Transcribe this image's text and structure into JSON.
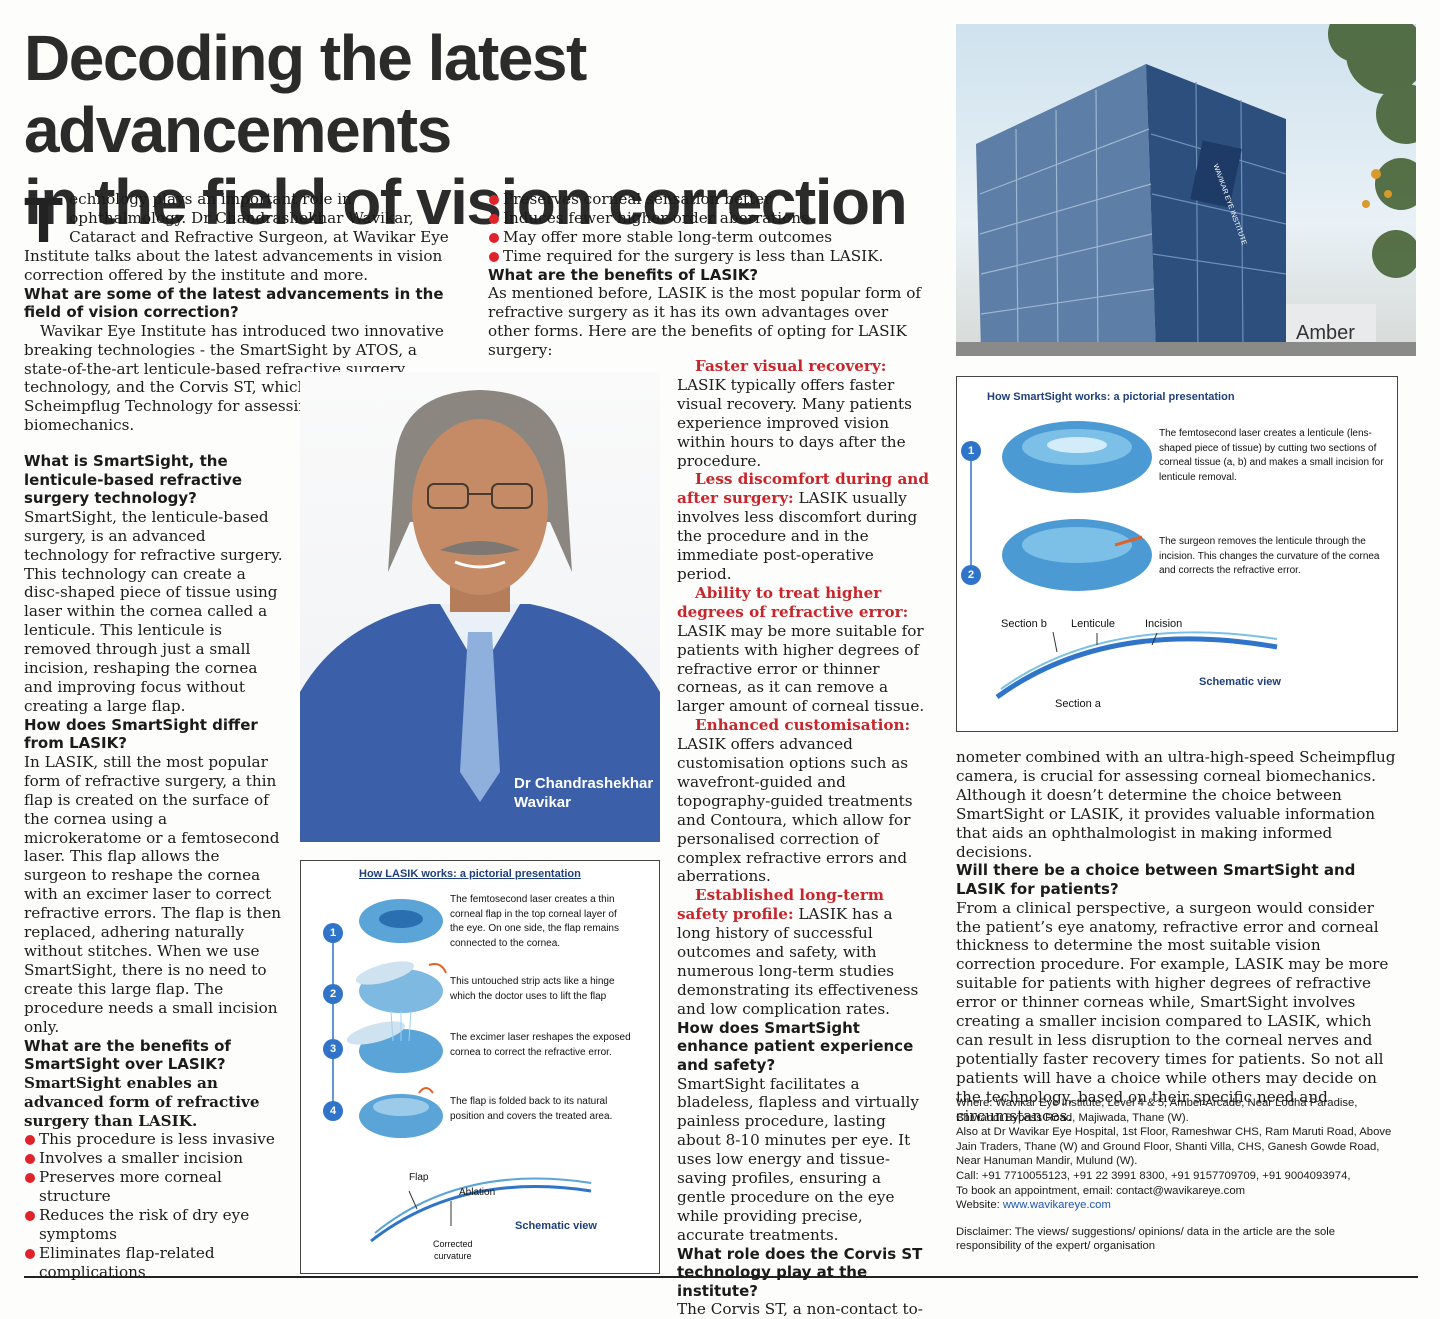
{
  "headline": {
    "line1": "Decoding the latest advancements",
    "line2": "in the field of vision correction"
  },
  "intro": {
    "dropcap": "T",
    "text": "echnology plays an important role in ophthalmology. Dr Chandrashekhar Wavikar, Cataract and Refractive Surgeon, at Wavikar Eye Institute talks about the latest advancements in vision correction offered by the institute and more."
  },
  "col1": {
    "q1": "What are some of the latest advancements in the field of vision correction?",
    "a1": "Wavikar Eye Institute has introduced two innovative breaking technologies - the SmartSight by ATOS, a state-of-the-art lenticule-based refractive surgery technology, and the Corvis ST, which employs Scheimpflug Technology for assessing corneal biomechanics.",
    "q2": "What is SmartSight, the lenticule-based refractive surgery technology?",
    "a2": "SmartSight, the lenticule-based surgery, is an advanced technology for refractive surgery. This technology can create a disc-shaped piece of tissue using laser within the cornea called a lenticule. This lenticule is removed through just a small incision, reshaping the cornea and improving focus without creating a large flap.",
    "q3": "How does SmartSight differ from LASIK?",
    "a3": "In LASIK, still the most popular form of refractive surgery, a thin flap is created on the surface of the cornea using a microkeratome or a femtosecond laser. This flap allows the surgeon to reshape the cornea with an excimer laser to correct refractive errors. The flap is then replaced, adhering naturally without stitches. When we use SmartSight, there is no need to create this large flap. The procedure needs a small incision only.",
    "q4": "What are the benefits of SmartSight over LASIK?",
    "lead4": "SmartSight enables an advanced form of refractive surgery than LASIK.",
    "bullets": [
      "This procedure is less invasive",
      "Involves a smaller incision",
      "Preserves more corneal structure",
      "Reduces the risk of dry eye symptoms",
      "Eliminates flap-related complications"
    ]
  },
  "col2": {
    "bullets": [
      "Preserves corneal sensation better",
      "Induces fewer higher-order aberrations",
      "May offer more stable long-term outcomes",
      "Time required for the surgery is less than LASIK."
    ],
    "q5": "What are the benefits of LASIK?",
    "a5": "As mentioned before, LASIK is the most popular form of refractive surgery as it has its own advantages over other forms. Here are the benefits of opting for LASIK surgery:"
  },
  "col3": {
    "b1_head": "Faster visual recovery:",
    "b1_text": "LASIK typically offers faster visual recovery. Many patients experience improved vision within hours to days after the procedure.",
    "b2_head": "Less discomfort during and after surgery:",
    "b2_text": "LASIK usually involves less discomfort during the procedure and in the immediate post-operative period.",
    "b3_head": "Ability to treat higher degrees of refractive error:",
    "b3_text": "LASIK may be more suitable for patients with higher degrees of refractive error or thinner corneas, as it can remove a larger amount of corneal tissue.",
    "b4_head": "Enhanced customisation:",
    "b4_text": "LASIK offers advanced customisation options such as wavefront-guided and topography-guided treatments and Contoura, which allow for personalised correction of complex refractive errors and aberrations.",
    "b5_head": "Established long-term safety profile:",
    "b5_text": "LASIK has a long history of successful outcomes and safety, with numerous long-term studies demonstrating its effectiveness and low complication rates.",
    "q6": "How does SmartSight enhance patient experience and safety?",
    "a6": "SmartSight facilitates a bladeless, flapless and virtually painless procedure, lasting about 8-10 minutes per eye. It uses low energy and tissue-saving profiles, ensuring a gentle procedure on the eye while providing precise, accurate treatments.",
    "q7": "What role does the Corvis ST technology play at the institute?",
    "a7": "The Corvis ST, a non-contact to-"
  },
  "col4": {
    "a7_cont": "nometer combined with an ultra-high-speed Scheimpflug camera, is crucial for assessing corneal biomechanics. Although it doesn’t determine the choice between SmartSight or LASIK, it provides valuable information that aids an ophthalmologist in making informed decisions.",
    "q8": "Will there be a choice between SmartSight and LASIK for patients?",
    "a8": "From a clinical perspective, a surgeon would consider the patient’s eye anatomy, refractive error and corneal thickness to determine the most suitable vision correction procedure. For example, LASIK may be more suitable for patients with higher degrees of refractive error or thinner corneas while, SmartSight involves creating a smaller incision compared to LASIK, which can result in less disruption to the corneal nerves and potentially faster recovery times for patients. So not all patients will have a choice while others may decide on the technology, based on their specific need and circumstances."
  },
  "contact": {
    "where": "Where: Wavikar Eye Institute, Level 4 & 5, Amber Arcade, Near Lodha Paradise, Bhiwandi Bypass Road, Majiwada, Thane (W).",
    "also": "Also at Dr Wavikar Eye Hospital, 1st Floor, Rameshwar CHS, Ram Maruti Road, Above Jain Traders, Thane (W) and Ground Floor, Shanti Villa, CHS, Ganesh Gowde Road, Near Hanuman Mandir, Mulund (W).",
    "call": "Call: +91 7710055123, +91 22 3991 8300, +91 9157709709, +91 9004093974,",
    "book": "To book an appointment, email: contact@wavikareye.com",
    "website_label": "Website: ",
    "website": "www.wavikareye.com",
    "disclaimer": "Disclaimer: The views/ suggestions/ opinions/ data in the article are the sole responsibility of the expert/ organisation"
  },
  "portrait": {
    "caption_line1": "Dr Chandrashekhar",
    "caption_line2": "Wavikar"
  },
  "building": {
    "sign1": "WAVIKAR EYE INSTITUTE",
    "sign2": "Amber"
  },
  "lasik_fig": {
    "title": "How LASIK works: a pictorial presentation",
    "steps": [
      {
        "num": "1",
        "text": "The femtosecond laser creates a thin corneal flap in the top corneal layer of the eye. On one side, the flap remains connected to the cornea."
      },
      {
        "num": "2",
        "text": "This untouched strip acts like a hinge which the doctor uses to lift the flap"
      },
      {
        "num": "3",
        "text": "The excimer laser reshapes the exposed cornea to correct the refractive error."
      },
      {
        "num": "4",
        "text": "The flap is folded back to its natural position and covers the treated area."
      }
    ],
    "schematic": {
      "flap": "Flap",
      "ablation": "Ablation",
      "corrected1": "Corrected",
      "corrected2": "curvature",
      "view": "Schematic view"
    }
  },
  "smart_fig": {
    "title": "How SmartSight works: a pictorial presentation",
    "steps": [
      {
        "num": "1",
        "text": "The femtosecond laser creates a lenticule (lens-shaped piece of tissue) by cutting two sections of corneal tissue (a, b) and makes a small incision for lenticule removal."
      },
      {
        "num": "2",
        "text": "The surgeon removes the lenticule through the incision. This changes the curvature of the cornea and corrects the refractive error."
      }
    ],
    "schematic": {
      "section_b": "Section b",
      "lenticule": "Lenticule",
      "incision": "Incision",
      "section_a": "Section a",
      "view": "Schematic view"
    }
  }
}
